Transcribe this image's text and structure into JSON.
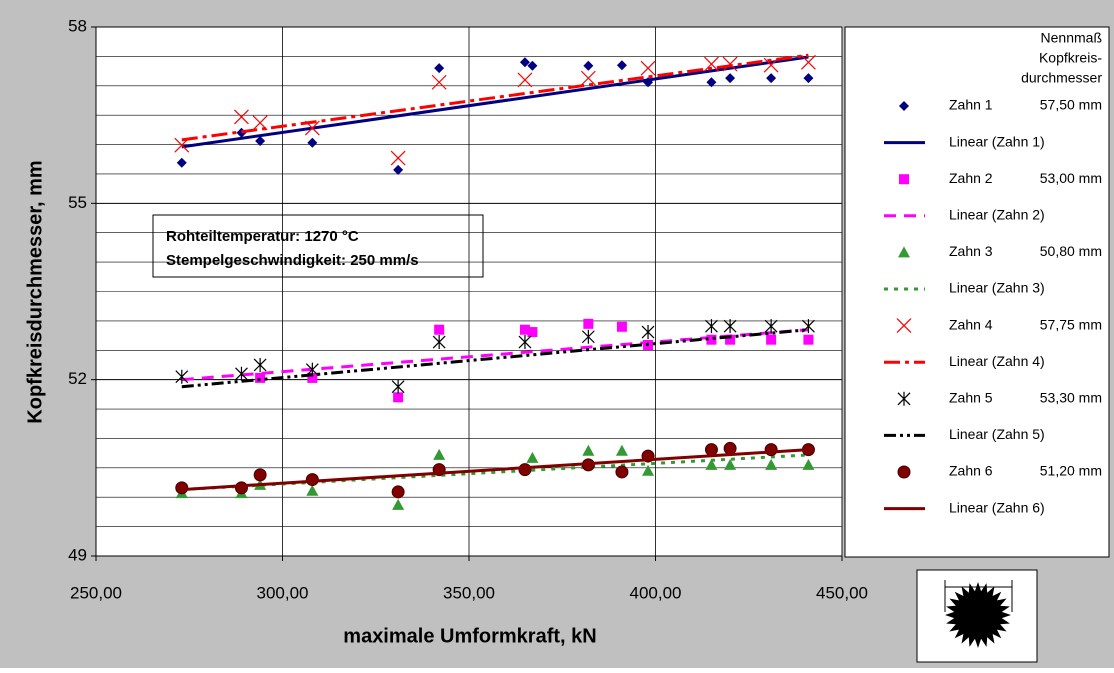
{
  "chart_data": {
    "type": "scatter",
    "xlabel": "maximale Umformkraft, kN",
    "ylabel": "Kopfkreisdurchmesser, mm",
    "xlim": [
      250,
      450
    ],
    "xticks": [
      {
        "value": 250,
        "label": "250,00"
      },
      {
        "value": 300,
        "label": "300,00"
      },
      {
        "value": 350,
        "label": "350,00"
      },
      {
        "value": 400,
        "label": "400,00"
      },
      {
        "value": 450,
        "label": "450,00"
      }
    ],
    "ylim": [
      49,
      58
    ],
    "yticks": [
      49,
      52,
      55,
      58
    ],
    "minor_yticks": [
      49.5,
      50,
      50.5,
      51,
      51.5,
      52.5,
      53,
      53.5,
      54,
      54.5,
      55.5,
      56,
      56.5,
      57,
      57.5
    ],
    "grid": true,
    "annotation": [
      "Rohteiltemperatur: 1270 °C",
      "Stempelgeschwindigkeit: 250 mm/s"
    ],
    "legend_title": [
      "Nennmaß",
      "Kopfkreis-",
      "durchmesser"
    ],
    "series": [
      {
        "name": "Zahn 1",
        "nominal": "57,50 mm",
        "kind": "scatter",
        "marker": "diamond",
        "color": "#000080",
        "x": [
          273,
          289,
          294,
          308,
          331,
          342,
          365,
          367,
          382,
          391,
          398,
          415,
          420,
          431,
          441
        ],
        "values": [
          55.69,
          56.2,
          56.06,
          56.03,
          55.57,
          57.3,
          57.4,
          57.34,
          57.34,
          57.35,
          57.06,
          57.06,
          57.13,
          57.13,
          57.13
        ]
      },
      {
        "name": "Linear (Zahn 1)",
        "kind": "line",
        "dash": "none",
        "color": "#000080",
        "x": [
          273,
          441
        ],
        "values": [
          55.96,
          57.49
        ]
      },
      {
        "name": "Zahn 2",
        "nominal": "53,00 mm",
        "kind": "scatter",
        "marker": "square",
        "color": "#ff00ff",
        "x": [
          294,
          308,
          331,
          342,
          365,
          367,
          382,
          391,
          398,
          415,
          420,
          431,
          441
        ],
        "values": [
          52.03,
          52.03,
          51.7,
          52.85,
          52.85,
          52.81,
          52.95,
          52.9,
          52.59,
          52.68,
          52.68,
          52.68,
          52.68
        ]
      },
      {
        "name": "Linear (Zahn 2)",
        "kind": "line",
        "dash": "12 8",
        "color": "#ff00ff",
        "x": [
          273,
          441
        ],
        "values": [
          52.0,
          52.85
        ]
      },
      {
        "name": "Zahn 3",
        "nominal": "50,80 mm",
        "kind": "scatter",
        "marker": "triangle",
        "color": "#339933",
        "x": [
          273,
          289,
          294,
          308,
          331,
          342,
          367,
          382,
          391,
          398,
          415,
          420,
          431,
          441
        ],
        "values": [
          50.07,
          50.07,
          50.21,
          50.11,
          49.87,
          50.72,
          50.67,
          50.79,
          50.79,
          50.45,
          50.55,
          50.55,
          50.55,
          50.55
        ]
      },
      {
        "name": "Linear (Zahn 3)",
        "kind": "line",
        "dash": "4 6",
        "color": "#339933",
        "x": [
          273,
          441
        ],
        "values": [
          50.13,
          50.72
        ]
      },
      {
        "name": "Zahn 4",
        "nominal": "57,75 mm",
        "kind": "scatter",
        "marker": "x",
        "color": "#ff0000",
        "x": [
          273,
          289,
          294,
          308,
          331,
          342,
          365,
          382,
          398,
          415,
          420,
          431,
          441
        ],
        "values": [
          55.99,
          56.47,
          56.37,
          56.28,
          55.77,
          57.06,
          57.1,
          57.13,
          57.3,
          57.37,
          57.37,
          57.35,
          57.4
        ]
      },
      {
        "name": "Linear (Zahn 4)",
        "kind": "line",
        "dash": "16 5 4 5",
        "color": "#ff0000",
        "x": [
          273,
          441
        ],
        "values": [
          56.08,
          57.52
        ]
      },
      {
        "name": "Zahn 5",
        "nominal": "53,30 mm",
        "kind": "scatter",
        "marker": "star",
        "color": "#000000",
        "x": [
          273,
          289,
          294,
          308,
          331,
          342,
          365,
          382,
          398,
          415,
          420,
          431,
          441
        ],
        "values": [
          52.05,
          52.1,
          52.25,
          52.17,
          51.88,
          52.64,
          52.64,
          52.73,
          52.81,
          52.91,
          52.91,
          52.91,
          52.91
        ]
      },
      {
        "name": "Linear (Zahn 5)",
        "kind": "line",
        "dash": "12 4 3 4 3 4",
        "color": "#000000",
        "x": [
          273,
          441
        ],
        "values": [
          51.88,
          52.85
        ]
      },
      {
        "name": "Zahn 6",
        "nominal": "51,20 mm",
        "kind": "scatter",
        "marker": "circle",
        "color": "#800000",
        "x": [
          273,
          289,
          294,
          308,
          331,
          342,
          365,
          382,
          391,
          398,
          415,
          420,
          431,
          441
        ],
        "values": [
          50.16,
          50.16,
          50.38,
          50.3,
          50.09,
          50.47,
          50.47,
          50.55,
          50.43,
          50.7,
          50.81,
          50.83,
          50.81,
          50.81
        ]
      },
      {
        "name": "Linear (Zahn 6)",
        "kind": "line",
        "dash": "none",
        "color": "#800000",
        "x": [
          273,
          441
        ],
        "values": [
          50.13,
          50.81
        ]
      }
    ]
  }
}
